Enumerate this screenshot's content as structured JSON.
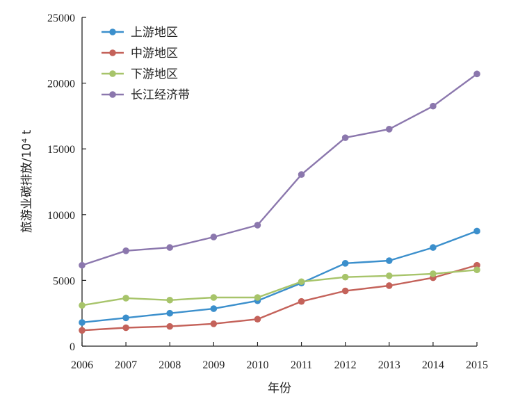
{
  "chart_data": {
    "type": "line",
    "title": "",
    "xlabel": "年份",
    "ylabel": "旅游业碳排放/10⁴ t",
    "categories": [
      "2006",
      "2007",
      "2008",
      "2009",
      "2010",
      "2011",
      "2012",
      "2013",
      "2014",
      "2015"
    ],
    "ylim": [
      0,
      25000
    ],
    "yticks": [
      "0",
      "5000",
      "10000",
      "15000",
      "20000",
      "25000"
    ],
    "grid": false,
    "legend_position": "top-left",
    "series": [
      {
        "name": "上游地区",
        "color": "#3b8fcc",
        "values": [
          1800,
          2150,
          2500,
          2850,
          3450,
          4800,
          6300,
          6500,
          7500,
          8750
        ]
      },
      {
        "name": "中游地区",
        "color": "#c4625a",
        "values": [
          1200,
          1400,
          1500,
          1700,
          2050,
          3400,
          4200,
          4600,
          5200,
          6150
        ]
      },
      {
        "name": "下游地区",
        "color": "#a7c46a",
        "values": [
          3100,
          3650,
          3500,
          3700,
          3700,
          4900,
          5250,
          5350,
          5500,
          5800
        ]
      },
      {
        "name": "长江经济带",
        "color": "#8b77ad",
        "values": [
          6150,
          7250,
          7500,
          8300,
          9200,
          13050,
          15850,
          16500,
          18250,
          20700
        ]
      }
    ]
  }
}
